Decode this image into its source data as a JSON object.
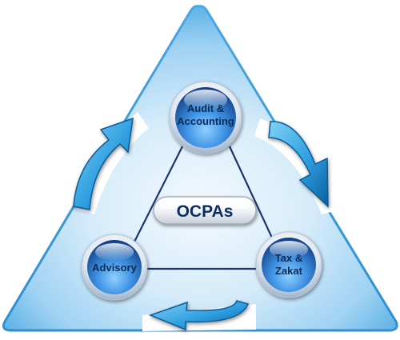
{
  "diagram": {
    "center_label": "OCPAs",
    "nodes": {
      "top": {
        "line1": "Audit &",
        "line2": "Accounting"
      },
      "left": {
        "line1": "Advisory"
      },
      "right": {
        "line1": "Tax &",
        "line2": "Zakat"
      }
    }
  },
  "colors": {
    "triangle_light": "#e9f5fd",
    "triangle_mid": "#9fd2f3",
    "triangle_edge": "#45a3de",
    "circle_dark": "#123f86",
    "circle_mid": "#2f7fd6",
    "circle_light": "#a9d8ff",
    "connector": "#1c3570",
    "arrow_light": "#5dc2ef",
    "arrow_dark": "#0b6aa8"
  }
}
